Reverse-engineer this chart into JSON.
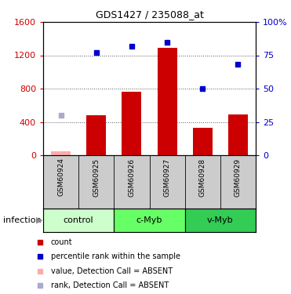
{
  "title": "GDS1427 / 235088_at",
  "samples": [
    "GSM60924",
    "GSM60925",
    "GSM60926",
    "GSM60927",
    "GSM60928",
    "GSM60929"
  ],
  "bar_values": [
    50,
    480,
    760,
    1290,
    330,
    490
  ],
  "bar_absent": [
    true,
    false,
    false,
    false,
    false,
    false
  ],
  "rank_values": [
    30,
    77,
    82,
    85,
    50,
    68
  ],
  "rank_absent": [
    true,
    false,
    false,
    false,
    false,
    false
  ],
  "left_ylim": [
    0,
    1600
  ],
  "right_ylim": [
    0,
    100
  ],
  "left_yticks": [
    0,
    400,
    800,
    1200,
    1600
  ],
  "right_yticks": [
    0,
    25,
    50,
    75,
    100
  ],
  "right_yticklabels": [
    "0",
    "25",
    "50",
    "75",
    "100%"
  ],
  "bar_color": "#cc0000",
  "bar_absent_color": "#ffaaaa",
  "rank_color": "#0000cc",
  "rank_absent_color": "#aaaacc",
  "dotted_color": "#555555",
  "bg_color": "#ffffff",
  "sample_area_color": "#cccccc",
  "group_defs": [
    {
      "label": "control",
      "start": 0,
      "end": 1,
      "color": "#ccffcc"
    },
    {
      "label": "c-Myb",
      "start": 2,
      "end": 3,
      "color": "#66ff66"
    },
    {
      "label": "v-Myb",
      "start": 4,
      "end": 5,
      "color": "#33cc55"
    }
  ],
  "legend_items": [
    {
      "color": "#cc0000",
      "label": "count"
    },
    {
      "color": "#0000cc",
      "label": "percentile rank within the sample"
    },
    {
      "color": "#ffaaaa",
      "label": "value, Detection Call = ABSENT"
    },
    {
      "color": "#aaaacc",
      "label": "rank, Detection Call = ABSENT"
    }
  ]
}
